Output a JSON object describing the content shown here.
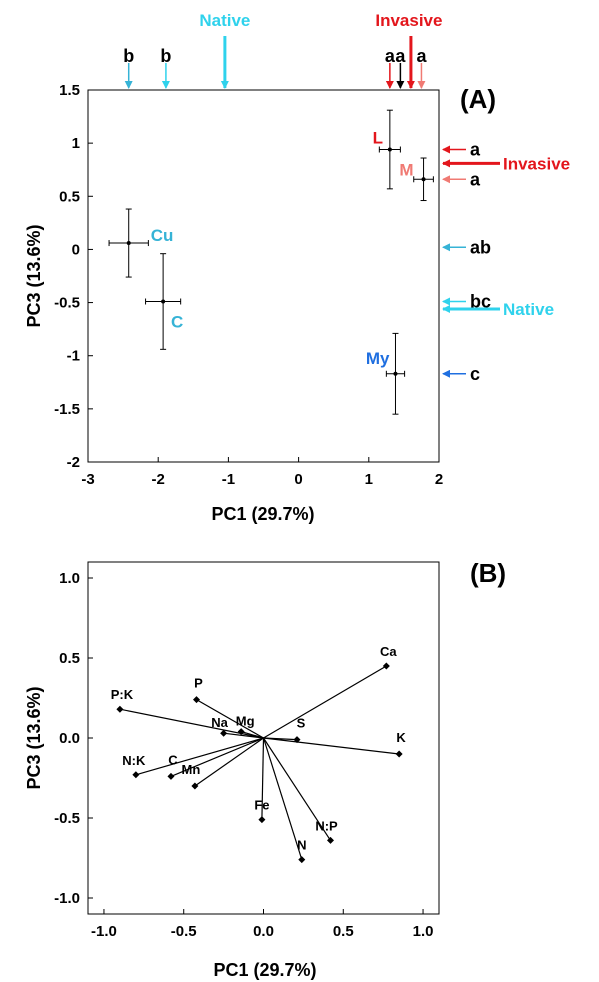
{
  "colors": {
    "red": "#e3161c",
    "salmon": "#f07a73",
    "cyan": "#2fd2ec",
    "lightblue": "#36b3d6",
    "blue": "#1f6fe0",
    "black": "#000000"
  },
  "chart_data": [
    {
      "type": "scatter",
      "panel_label": "(A)",
      "xlabel": "PC1 (29.7%)",
      "ylabel": "PC3 (13.6%)",
      "xlim": [
        -3,
        2
      ],
      "ylim": [
        -2,
        1.5
      ],
      "xticks": [
        "-3",
        "-2",
        "-1",
        "0",
        "1",
        "2"
      ],
      "yticks": [
        "-2",
        "-1.5",
        "-1",
        "-0.5",
        "0",
        "0.5",
        "1",
        "1.5"
      ],
      "points": [
        {
          "label": "Cu",
          "color": "#36b3d6",
          "x": -2.42,
          "y": 0.06,
          "xerr": 0.28,
          "yerr": 0.32
        },
        {
          "label": "C",
          "color": "#36b3d6",
          "x": -1.93,
          "y": -0.49,
          "xerr": 0.25,
          "yerr": 0.45
        },
        {
          "label": "L",
          "color": "#e3161c",
          "x": 1.3,
          "y": 0.94,
          "xerr": 0.15,
          "yerr": 0.37
        },
        {
          "label": "M",
          "color": "#f07a73",
          "x": 1.78,
          "y": 0.66,
          "xerr": 0.14,
          "yerr": 0.2
        },
        {
          "label": "My",
          "color": "#1f6fe0",
          "x": 1.38,
          "y": -1.17,
          "xerr": 0.13,
          "yerr": 0.38
        }
      ],
      "top_arrows": [
        {
          "letter": "b",
          "x": -2.42,
          "color": "#36b3d6"
        },
        {
          "letter": "b",
          "x": -1.89,
          "color": "#2fd2ec"
        },
        {
          "letter": "a",
          "x": 1.3,
          "color": "#e3161c"
        },
        {
          "letter": "a",
          "x": 1.45,
          "color": "#000000"
        },
        {
          "letter": "a",
          "x": 1.75,
          "color": "#f07a73"
        }
      ],
      "top_group_arrows": [
        {
          "label": "Native",
          "x": -1.05,
          "color": "#2fd2ec"
        },
        {
          "label": "Invasive",
          "x": 1.6,
          "color": "#e3161c"
        }
      ],
      "right_arrows": [
        {
          "letter": "a",
          "y": 0.94,
          "color": "#e3161c"
        },
        {
          "letter": "a",
          "y": 0.66,
          "color": "#f07a73"
        },
        {
          "letter": "ab",
          "y": 0.02,
          "color": "#36b3d6"
        },
        {
          "letter": "bc",
          "y": -0.49,
          "color": "#2fd2ec"
        },
        {
          "letter": "c",
          "y": -1.17,
          "color": "#1f6fe0"
        }
      ],
      "right_group_arrows": [
        {
          "label": "Invasive",
          "y": 0.81,
          "color": "#e3161c"
        },
        {
          "label": "Native",
          "y": -0.56,
          "color": "#2fd2ec"
        }
      ]
    },
    {
      "type": "biplot",
      "panel_label": "(B)",
      "xlabel": "PC1 (29.7%)",
      "ylabel": "PC3 (13.6%)",
      "xlim": [
        -1.1,
        1.1
      ],
      "ylim": [
        -1.1,
        1.1
      ],
      "xticks": [
        "-1.0",
        "-0.5",
        "0.0",
        "0.5",
        "1.0"
      ],
      "yticks": [
        "-1.0",
        "-0.5",
        "0.0",
        "0.5",
        "1.0"
      ],
      "vectors": [
        {
          "label": "Ca",
          "x": 0.77,
          "y": 0.45
        },
        {
          "label": "K",
          "x": 0.85,
          "y": -0.1
        },
        {
          "label": "P:K",
          "x": -0.9,
          "y": 0.18
        },
        {
          "label": "P",
          "x": -0.42,
          "y": 0.24
        },
        {
          "label": "Na",
          "x": -0.25,
          "y": 0.03
        },
        {
          "label": "Mg",
          "x": -0.14,
          "y": 0.04
        },
        {
          "label": "S",
          "x": 0.21,
          "y": -0.01
        },
        {
          "label": "N:K",
          "x": -0.8,
          "y": -0.23
        },
        {
          "label": "C",
          "x": -0.58,
          "y": -0.24
        },
        {
          "label": "Mn",
          "x": -0.43,
          "y": -0.3
        },
        {
          "label": "Fe",
          "x": -0.01,
          "y": -0.51
        },
        {
          "label": "N:P",
          "x": 0.42,
          "y": -0.64
        },
        {
          "label": "N",
          "x": 0.24,
          "y": -0.76
        }
      ]
    }
  ]
}
